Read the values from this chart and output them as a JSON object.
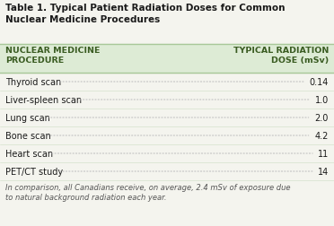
{
  "title": "Table 1. Typical Patient Radiation Doses for Common\nNuclear Medicine Procedures",
  "header_col1": "NUCLEAR MEDICINE\nPROCEDURE",
  "header_col2": "TYPICAL RADIATION\nDOSE (mSv)",
  "rows": [
    [
      "Thyroid scan",
      "0.14"
    ],
    [
      "Liver-spleen scan",
      "1.0"
    ],
    [
      "Lung scan",
      "2.0"
    ],
    [
      "Bone scan",
      "4.2"
    ],
    [
      "Heart scan",
      "11"
    ],
    [
      "PET/CT study",
      "14"
    ]
  ],
  "footnote": "In comparison, all Canadians receive, on average, 2.4 mSv of exposure due\nto natural background radiation each year.",
  "bg_color": "#f4f4ee",
  "header_bg": "#ddebd5",
  "title_color": "#1a1a1a",
  "header_text_color": "#3a5c22",
  "row_text_color": "#1a1a1a",
  "footnote_color": "#555555",
  "border_color": "#a8c898",
  "dot_color": "#c0c0c0",
  "title_fontsize": 7.5,
  "header_fontsize": 6.8,
  "row_fontsize": 7.0,
  "footnote_fontsize": 6.0
}
